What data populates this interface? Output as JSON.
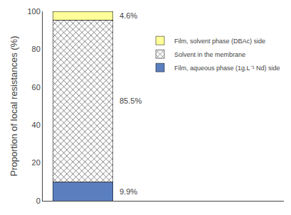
{
  "chart_data": {
    "type": "bar",
    "stacked": true,
    "categories": [
      null
    ],
    "series": [
      {
        "name": "Film, aqueous phase (1g.L⁻¹ Nd) side",
        "color": "#5b7fbe",
        "values": [
          9.9
        ],
        "value_labels": [
          "9.9%"
        ]
      },
      {
        "name": "Solvent in the membrane",
        "color": "#ffff99",
        "marker": "x",
        "values": [
          85.5
        ],
        "value_labels": [
          "85.5%"
        ]
      },
      {
        "name": "Film, solvent phase (DBAc) side",
        "color": "#ffff99",
        "values": [
          4.6
        ],
        "value_labels": [
          "4.6%"
        ]
      }
    ],
    "ylabel": "Proportion of local resistances (%)",
    "ylim": [
      0,
      100
    ],
    "yticks": [
      0,
      20,
      40,
      60,
      80,
      100
    ],
    "grid": false,
    "legend": "upper right",
    "data_labels": true,
    "tick_labels": "y"
  }
}
